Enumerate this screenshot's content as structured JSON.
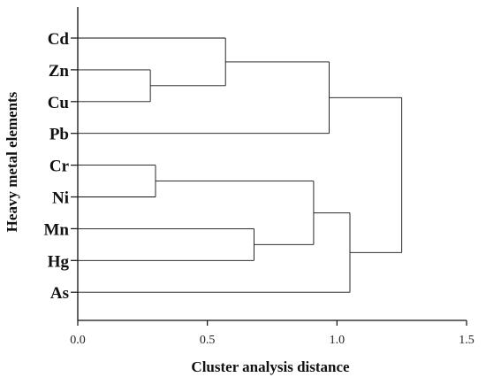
{
  "chart_data": {
    "type": "dendrogram",
    "orientation": "horizontal",
    "xlabel": "Cluster analysis distance",
    "ylabel": "Heavy metal elements",
    "xlim": [
      0,
      1.5
    ],
    "xticks": [
      0,
      0.5,
      1.0,
      1.5
    ],
    "xtick_labels": [
      "0.0",
      "0.5",
      "1.0",
      "1.5"
    ],
    "leaves": [
      "Cd",
      "Zn",
      "Cu",
      "Pb",
      "Cr",
      "Ni",
      "Mn",
      "Hg",
      "As"
    ],
    "merges": [
      {
        "children": [
          "Zn",
          "Cu"
        ],
        "distance": 0.28
      },
      {
        "children": [
          "Cr",
          "Ni"
        ],
        "distance": 0.3
      },
      {
        "children": [
          "Cd",
          "Zn+Cu"
        ],
        "distance": 0.57
      },
      {
        "children": [
          "Mn",
          "Hg"
        ],
        "distance": 0.68
      },
      {
        "children": [
          "Cr+Ni",
          "Mn+Hg"
        ],
        "distance": 0.91
      },
      {
        "children": [
          "Cd+Zn+Cu",
          "Pb"
        ],
        "distance": 0.97
      },
      {
        "children": [
          "Cr+Ni+Mn+Hg",
          "As"
        ],
        "distance": 1.05
      },
      {
        "children": [
          "Cd+Zn+Cu+Pb",
          "Cr+Ni+Mn+Hg+As"
        ],
        "distance": 1.25
      }
    ],
    "colors": {
      "line": "#111111",
      "text": "#111111"
    },
    "grid": false,
    "legend": "none"
  }
}
